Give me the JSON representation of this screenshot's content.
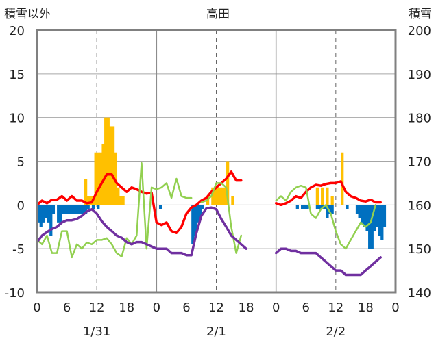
{
  "chart_data": {
    "type": "combo",
    "title": "高田",
    "ylabel_left": "積雪以外",
    "ylabel_right": "積雪",
    "ylim_left": [
      -10,
      20
    ],
    "ylim_right": [
      140,
      200
    ],
    "yticks_left": [
      "20",
      "15",
      "10",
      "5",
      "0",
      "-5",
      "-10"
    ],
    "yticks_right": [
      "200",
      "190",
      "180",
      "170",
      "160",
      "150",
      "140"
    ],
    "x_hours_range": [
      0,
      72
    ],
    "hour_ticks": [
      "0",
      "6",
      "12",
      "18",
      "0",
      "6",
      "12",
      "18",
      "0",
      "6",
      "12",
      "18",
      "0"
    ],
    "dates": [
      "1/31",
      "2/1",
      "2/2"
    ],
    "grid": {
      "dashed_vertical_every_hours": 12,
      "horizontal_lines": [
        15,
        10,
        5,
        0,
        -5
      ]
    },
    "colors": {
      "snowfall_bars": "#FFC000",
      "negative_bars": "#0070C0",
      "temperature": "#FF0000",
      "green_series": "#92D050",
      "snow_depth": "#7030A0"
    },
    "snowfall_bars": [
      [
        9.5,
        3
      ],
      [
        10,
        1
      ],
      [
        10.5,
        1
      ],
      [
        11,
        1
      ],
      [
        11.5,
        6
      ],
      [
        12,
        6
      ],
      [
        12.5,
        6
      ],
      [
        13,
        7
      ],
      [
        13.5,
        10
      ],
      [
        14,
        10
      ],
      [
        14.5,
        9
      ],
      [
        15,
        9
      ],
      [
        15.5,
        6
      ],
      [
        16,
        2
      ],
      [
        16.5,
        1
      ],
      [
        17,
        1
      ],
      [
        34,
        1
      ],
      [
        35,
        2
      ],
      [
        35.5,
        2
      ],
      [
        36,
        2
      ],
      [
        36.5,
        2
      ],
      [
        37,
        2
      ],
      [
        37.5,
        2
      ],
      [
        38,
        5
      ],
      [
        39,
        1
      ],
      [
        56,
        2
      ],
      [
        57,
        2
      ],
      [
        58,
        2
      ],
      [
        59,
        1
      ],
      [
        61,
        6
      ]
    ],
    "negative_bars": [
      [
        0,
        -2
      ],
      [
        0.5,
        -2.5
      ],
      [
        1,
        -2
      ],
      [
        1.5,
        -1.5
      ],
      [
        2,
        -2
      ],
      [
        2.5,
        -3.5
      ],
      [
        3,
        -1
      ],
      [
        4,
        -2
      ],
      [
        4.5,
        -2
      ],
      [
        5,
        -1
      ],
      [
        5.5,
        -1
      ],
      [
        6,
        -1
      ],
      [
        6.5,
        -1
      ],
      [
        7,
        -1
      ],
      [
        7.5,
        -1
      ],
      [
        8,
        -1
      ],
      [
        8.5,
        -1
      ],
      [
        9,
        -1
      ],
      [
        9.5,
        -1
      ],
      [
        10,
        -0.5
      ],
      [
        11,
        -0.5
      ],
      [
        12,
        -0.5
      ],
      [
        24.5,
        -0.5
      ],
      [
        31,
        -4.5
      ],
      [
        31.5,
        -3.5
      ],
      [
        32,
        -2
      ],
      [
        32.5,
        -1.5
      ],
      [
        33,
        -0.5
      ],
      [
        52,
        -0.5
      ],
      [
        53,
        -0.5
      ],
      [
        53.5,
        -0.5
      ],
      [
        54,
        -0.5
      ],
      [
        56,
        -0.5
      ],
      [
        56.5,
        -0.5
      ],
      [
        57,
        -0.5
      ],
      [
        57.5,
        -0.5
      ],
      [
        58,
        -1.5
      ],
      [
        58.5,
        -1
      ],
      [
        59,
        -1
      ],
      [
        62,
        -0.5
      ],
      [
        64,
        -1
      ],
      [
        64.5,
        -1.5
      ],
      [
        65,
        -2
      ],
      [
        65.5,
        -2.5
      ],
      [
        66,
        -3
      ],
      [
        66.5,
        -5
      ],
      [
        67,
        -5
      ],
      [
        67.5,
        -3
      ],
      [
        68,
        -2.5
      ],
      [
        68.5,
        -3.5
      ],
      [
        69,
        -4
      ],
      [
        69.5,
        -2.5
      ]
    ],
    "series": [
      {
        "key": "temperature",
        "axis": "left",
        "points": [
          [
            0,
            0
          ],
          [
            1,
            0.5
          ],
          [
            2,
            0.2
          ],
          [
            3,
            0.6
          ],
          [
            4,
            0.6
          ],
          [
            5,
            1
          ],
          [
            6,
            0.5
          ],
          [
            7,
            1
          ],
          [
            8,
            0.5
          ],
          [
            9,
            0.5
          ],
          [
            10,
            0.2
          ],
          [
            11,
            0.3
          ],
          [
            12,
            1.5
          ],
          [
            13,
            2.5
          ],
          [
            14,
            3.5
          ],
          [
            15,
            3.5
          ],
          [
            16,
            2.5
          ],
          [
            17,
            2
          ],
          [
            18,
            1.5
          ],
          [
            19,
            2
          ],
          [
            20,
            1.8
          ],
          [
            21,
            1.5
          ],
          [
            22,
            1.3
          ],
          [
            23,
            1.4
          ],
          [
            24,
            -2
          ],
          [
            25,
            -2.3
          ],
          [
            26,
            -2
          ],
          [
            27,
            -3
          ],
          [
            28,
            -3.2
          ],
          [
            29,
            -2.5
          ],
          [
            30,
            -1
          ],
          [
            31,
            -0.3
          ],
          [
            32,
            0
          ],
          [
            33,
            0.5
          ],
          [
            34,
            0.8
          ],
          [
            35,
            1.5
          ],
          [
            36,
            2
          ],
          [
            37,
            2.5
          ],
          [
            38,
            3
          ],
          [
            39,
            3.8
          ],
          [
            40,
            2.8
          ],
          [
            41,
            2.8
          ],
          null,
          [
            48,
            0.2
          ],
          [
            49,
            0
          ],
          [
            50,
            0.2
          ],
          [
            51,
            0.5
          ],
          [
            52,
            1
          ],
          [
            53,
            0.8
          ],
          [
            54,
            1.5
          ],
          [
            55,
            2
          ],
          [
            56,
            2.3
          ],
          [
            57,
            2.2
          ],
          [
            58,
            2.4
          ],
          [
            59,
            2.5
          ],
          [
            60,
            2.5
          ],
          [
            61,
            2.7
          ],
          [
            62,
            1.5
          ],
          [
            63,
            1
          ],
          [
            64,
            0.8
          ],
          [
            65,
            0.5
          ],
          [
            66,
            0.4
          ],
          [
            67,
            0.6
          ],
          [
            68,
            0.3
          ],
          [
            69,
            0.3
          ]
        ]
      },
      {
        "key": "green_series",
        "axis": "left",
        "points": [
          [
            0,
            -4
          ],
          [
            1,
            -4.5
          ],
          [
            2,
            -3.5
          ],
          [
            3,
            -5.5
          ],
          [
            4,
            -5.5
          ],
          [
            5,
            -3
          ],
          [
            6,
            -3
          ],
          [
            7,
            -6
          ],
          [
            8,
            -4.5
          ],
          [
            9,
            -5
          ],
          [
            10,
            -4.3
          ],
          [
            11,
            -4.5
          ],
          [
            12,
            -4
          ],
          [
            13,
            -4
          ],
          [
            14,
            -3.8
          ],
          [
            15,
            -4.5
          ],
          [
            16,
            -5.5
          ],
          [
            17,
            -5.9
          ],
          [
            18,
            -3.8
          ],
          [
            19,
            -4.5
          ],
          [
            20,
            -3.5
          ],
          [
            21,
            4.8
          ],
          [
            22,
            -5
          ],
          [
            23,
            2
          ],
          [
            24,
            1.8
          ],
          [
            25,
            2
          ],
          [
            26,
            2.5
          ],
          [
            27,
            0.8
          ],
          [
            28,
            3
          ],
          [
            29,
            1
          ],
          [
            30,
            0.8
          ],
          [
            31,
            0.8
          ],
          null,
          [
            33,
            0.3
          ],
          [
            34,
            0.5
          ],
          [
            35,
            1
          ],
          [
            36,
            2.5
          ],
          [
            37,
            2.5
          ],
          [
            38,
            2
          ],
          [
            39,
            -2.5
          ],
          [
            40,
            -5.5
          ],
          [
            41,
            -3.5
          ],
          null,
          [
            48,
            0.5
          ],
          [
            49,
            1
          ],
          [
            50,
            0.5
          ],
          [
            51,
            1.5
          ],
          [
            52,
            2
          ],
          [
            53,
            2.2
          ],
          [
            54,
            2
          ],
          [
            55,
            -1
          ],
          [
            56,
            -1.5
          ],
          [
            57,
            -0.5
          ],
          [
            58,
            0
          ],
          [
            59,
            -1
          ],
          [
            60,
            -3
          ],
          [
            61,
            -4.5
          ],
          [
            62,
            -5
          ],
          [
            63,
            -4
          ],
          [
            64,
            -3
          ],
          [
            65,
            -2
          ],
          [
            66,
            -2.5
          ],
          [
            67,
            -2
          ],
          [
            68,
            0
          ]
        ]
      },
      {
        "key": "snow_depth",
        "axis": "right",
        "points": [
          [
            0,
            151.5
          ],
          [
            1,
            153
          ],
          [
            2,
            153.8
          ],
          [
            3,
            154.5
          ],
          [
            4,
            155
          ],
          [
            5,
            156
          ],
          [
            6,
            156.5
          ],
          [
            7,
            156.5
          ],
          [
            8,
            156.8
          ],
          [
            9,
            157.5
          ],
          [
            10,
            158.5
          ],
          [
            11,
            159
          ],
          [
            12,
            158
          ],
          [
            13,
            156.3
          ],
          [
            14,
            155
          ],
          [
            15,
            154
          ],
          [
            16,
            153
          ],
          [
            17,
            152.5
          ],
          [
            18,
            151.5
          ],
          [
            19,
            151
          ],
          [
            20,
            151.5
          ],
          [
            21,
            151.5
          ],
          [
            22,
            151
          ],
          [
            23,
            150.5
          ],
          [
            24,
            150
          ],
          [
            25,
            150
          ],
          [
            26,
            150
          ],
          [
            27,
            149
          ],
          [
            28,
            149
          ],
          [
            29,
            149
          ],
          [
            30,
            148.5
          ],
          [
            31,
            148.5
          ],
          [
            32,
            153.5
          ],
          [
            33,
            157.5
          ],
          [
            34,
            159.2
          ],
          [
            35,
            159.4
          ],
          [
            36,
            159
          ],
          [
            37,
            156.8
          ],
          [
            38,
            155
          ],
          [
            39,
            153
          ],
          [
            40,
            152
          ],
          [
            41,
            151
          ],
          [
            42,
            150
          ],
          null,
          [
            48,
            149
          ],
          [
            49,
            150
          ],
          [
            50,
            150
          ],
          [
            51,
            149.5
          ],
          [
            52,
            149.5
          ],
          [
            53,
            149
          ],
          [
            54,
            149
          ],
          [
            55,
            149
          ],
          [
            56,
            149
          ],
          [
            57,
            148
          ],
          [
            58,
            147
          ],
          [
            59,
            146
          ],
          [
            60,
            145
          ],
          [
            61,
            145
          ],
          [
            62,
            144
          ],
          [
            63,
            144
          ],
          [
            64,
            144
          ],
          [
            65,
            144
          ],
          [
            66,
            145
          ],
          [
            67,
            146
          ],
          [
            68,
            147
          ],
          [
            69,
            148
          ]
        ]
      }
    ]
  }
}
